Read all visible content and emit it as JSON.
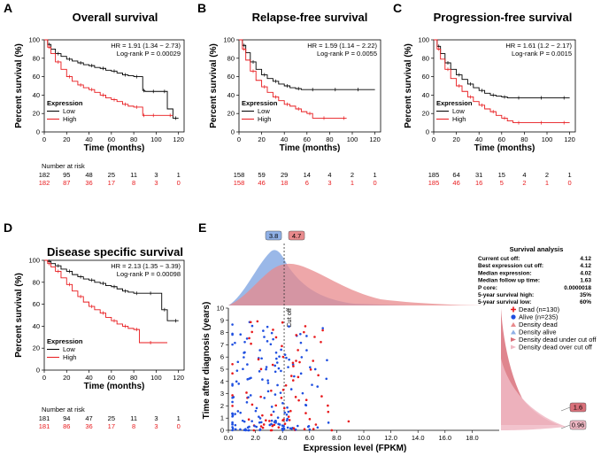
{
  "chart_data": [
    {
      "panel": "A",
      "type": "line",
      "title": "Overall survival",
      "xlabel": "Time (months)",
      "ylabel": "Percent survival (%)",
      "xticks": [
        0,
        20,
        40,
        60,
        80,
        100,
        120
      ],
      "yticks": [
        0,
        20,
        40,
        60,
        80,
        100
      ],
      "xlim": [
        0,
        125
      ],
      "ylim": [
        0,
        100
      ],
      "annotations": [
        "HR = 1.91 (1.34 − 2.73)",
        "Log-rank P = 0.00029"
      ],
      "legend_title": "Expression",
      "series": [
        {
          "name": "Low",
          "color": "#000000",
          "x": [
            0,
            3,
            6,
            10,
            15,
            20,
            25,
            30,
            35,
            40,
            45,
            50,
            55,
            60,
            65,
            70,
            75,
            80,
            85,
            88,
            90,
            95,
            100,
            105,
            110,
            115,
            120
          ],
          "y": [
            100,
            95,
            90,
            85,
            82,
            79,
            77,
            75,
            73,
            72,
            70,
            69,
            67,
            66,
            64,
            62,
            61,
            60,
            60,
            45,
            44,
            44,
            44,
            44,
            25,
            15,
            15
          ]
        },
        {
          "name": "High",
          "color": "#e8191c",
          "x": [
            0,
            3,
            6,
            10,
            15,
            20,
            25,
            30,
            35,
            40,
            45,
            50,
            55,
            60,
            65,
            70,
            75,
            80,
            85,
            88,
            90,
            95,
            100,
            110,
            115
          ],
          "y": [
            100,
            92,
            85,
            76,
            68,
            60,
            55,
            51,
            48,
            46,
            43,
            40,
            37,
            35,
            33,
            30,
            28,
            27,
            27,
            18,
            18,
            18,
            18,
            18,
            18
          ]
        }
      ],
      "risk_header": "Number at risk",
      "risk_low": [
        "182",
        "95",
        "48",
        "25",
        "11",
        "3",
        "1"
      ],
      "risk_high": [
        "182",
        "87",
        "36",
        "17",
        "8",
        "3",
        "0"
      ]
    },
    {
      "panel": "B",
      "type": "line",
      "title": "Relapse-free survival",
      "xlabel": "Time (months)",
      "ylabel": "Percent survival (%)",
      "xticks": [
        0,
        20,
        40,
        60,
        80,
        100,
        120
      ],
      "yticks": [
        0,
        20,
        40,
        60,
        80,
        100
      ],
      "xlim": [
        0,
        125
      ],
      "ylim": [
        0,
        100
      ],
      "annotations": [
        "HR = 1.59 (1.14 − 2.22)",
        "Log-rank P = 0.0055"
      ],
      "legend_title": "Expression",
      "series": [
        {
          "name": "Low",
          "color": "#000000",
          "x": [
            0,
            3,
            6,
            10,
            15,
            20,
            25,
            30,
            35,
            40,
            45,
            50,
            55,
            60,
            70,
            80,
            90,
            100,
            110,
            120
          ],
          "y": [
            100,
            94,
            86,
            76,
            68,
            62,
            58,
            55,
            52,
            50,
            48,
            47,
            46,
            46,
            46,
            46,
            46,
            46,
            46,
            46
          ]
        },
        {
          "name": "High",
          "color": "#e8191c",
          "x": [
            0,
            3,
            6,
            10,
            15,
            20,
            25,
            30,
            35,
            40,
            45,
            50,
            55,
            60,
            65,
            70,
            80,
            90,
            95
          ],
          "y": [
            100,
            90,
            78,
            66,
            56,
            49,
            43,
            38,
            34,
            30,
            28,
            25,
            22,
            20,
            15,
            15,
            15,
            15,
            15
          ]
        }
      ],
      "risk_header": "",
      "risk_low": [
        "158",
        "59",
        "29",
        "14",
        "4",
        "2",
        "1"
      ],
      "risk_high": [
        "158",
        "46",
        "18",
        "6",
        "3",
        "1",
        "0"
      ]
    },
    {
      "panel": "C",
      "type": "line",
      "title": "Progression-free survival",
      "xlabel": "Time (months)",
      "ylabel": "Percent survival (%)",
      "xticks": [
        0,
        20,
        40,
        60,
        80,
        100,
        120
      ],
      "yticks": [
        0,
        20,
        40,
        60,
        80,
        100
      ],
      "xlim": [
        0,
        125
      ],
      "ylim": [
        0,
        100
      ],
      "annotations": [
        "HR = 1.61 (1.2 − 2.17)",
        "Log-rank P = 0.0015"
      ],
      "legend_title": "Expression",
      "series": [
        {
          "name": "Low",
          "color": "#000000",
          "x": [
            0,
            3,
            6,
            10,
            15,
            20,
            25,
            30,
            35,
            40,
            45,
            50,
            55,
            60,
            65,
            70,
            80,
            90,
            100,
            110,
            120
          ],
          "y": [
            100,
            93,
            85,
            75,
            68,
            62,
            57,
            52,
            48,
            45,
            42,
            40,
            39,
            38,
            37,
            37,
            37,
            37,
            37,
            37,
            37
          ]
        },
        {
          "name": "High",
          "color": "#e8191c",
          "x": [
            0,
            3,
            6,
            10,
            15,
            20,
            25,
            30,
            35,
            40,
            45,
            50,
            55,
            60,
            65,
            70,
            80,
            90,
            100,
            110,
            120
          ],
          "y": [
            100,
            90,
            79,
            68,
            58,
            50,
            44,
            38,
            33,
            29,
            25,
            22,
            18,
            15,
            12,
            10,
            10,
            10,
            10,
            10,
            10
          ]
        }
      ],
      "risk_header": "",
      "risk_low": [
        "185",
        "64",
        "31",
        "15",
        "4",
        "2",
        "1"
      ],
      "risk_high": [
        "185",
        "46",
        "16",
        "5",
        "2",
        "1",
        "0"
      ]
    },
    {
      "panel": "D",
      "type": "line",
      "title": "Disease specific survival",
      "xlabel": "Time (months)",
      "ylabel": "Percent survival (%)",
      "xticks": [
        0,
        20,
        40,
        60,
        80,
        100,
        120
      ],
      "yticks": [
        0,
        20,
        40,
        60,
        80,
        100
      ],
      "xlim": [
        0,
        125
      ],
      "ylim": [
        0,
        100
      ],
      "annotations": [
        "HR = 2.13 (1.35 − 3.39)",
        "Log-rank P = 0.00098"
      ],
      "legend_title": "Expression",
      "series": [
        {
          "name": "Low",
          "color": "#000000",
          "x": [
            0,
            3,
            6,
            10,
            15,
            20,
            25,
            30,
            35,
            40,
            45,
            50,
            55,
            60,
            65,
            70,
            75,
            80,
            85,
            90,
            100,
            105,
            110,
            115,
            120
          ],
          "y": [
            100,
            99,
            97,
            95,
            92,
            90,
            87,
            85,
            83,
            82,
            80,
            79,
            77,
            76,
            74,
            72,
            71,
            70,
            70,
            70,
            70,
            55,
            45,
            45,
            45
          ]
        },
        {
          "name": "High",
          "color": "#e8191c",
          "x": [
            0,
            3,
            6,
            10,
            15,
            20,
            25,
            30,
            35,
            40,
            45,
            50,
            55,
            60,
            65,
            70,
            75,
            80,
            85,
            90,
            100,
            110
          ],
          "y": [
            100,
            97,
            94,
            90,
            84,
            78,
            72,
            67,
            62,
            58,
            55,
            52,
            48,
            45,
            42,
            40,
            38,
            37,
            25,
            25,
            25,
            25
          ]
        }
      ],
      "risk_header": "Number at risk",
      "risk_low": [
        "181",
        "94",
        "47",
        "25",
        "11",
        "3",
        "1"
      ],
      "risk_high": [
        "181",
        "86",
        "36",
        "17",
        "8",
        "3",
        "0"
      ]
    },
    {
      "panel": "E",
      "type": "scatter",
      "xlabel": "Expression level (FPKM)",
      "ylabel": "Time after diagnosis (years)",
      "xticks": [
        0,
        "0.0",
        "2.0",
        "4.0",
        "6.0",
        "8.0",
        "10.0",
        "12.0",
        "14.0",
        "16.0",
        "18.0"
      ],
      "yticks": [
        0,
        1,
        2,
        3,
        4,
        5,
        6,
        7,
        8,
        9,
        10
      ],
      "xlim": [
        0,
        20
      ],
      "ylim": [
        0,
        10
      ],
      "cutoff": 4.12,
      "cutoff_label": "Cut off",
      "top_markers": [
        "3.8",
        "4.7"
      ],
      "right_markers": [
        "1.6",
        "0.96"
      ],
      "legend": [
        {
          "label": "Dead (n=130)",
          "color": "#e8191c"
        },
        {
          "label": "Alive (n=235)",
          "color": "#1f4fe0"
        },
        {
          "label": "Density dead",
          "color": "#e88a8c"
        },
        {
          "label": "Density alive",
          "color": "#8fb0e6"
        },
        {
          "label": "Density dead under cut off",
          "color": "#d9707a"
        },
        {
          "label": "Density dead over cut off",
          "color": "#f0b8c4"
        }
      ],
      "survival_analysis": {
        "title": "Survival analysis",
        "rows": [
          {
            "label": "Current cut off:",
            "value": "4.12"
          },
          {
            "label": "Best expression cut off:",
            "value": "4.12"
          },
          {
            "label": "Median expression:",
            "value": "4.02"
          },
          {
            "label": "Median follow up time:",
            "value": "1.63"
          },
          {
            "label": "P core:",
            "value": "0.0000018"
          },
          {
            "label": "5-year survival high:",
            "value": "35%"
          },
          {
            "label": "5-year survival low:",
            "value": "60%"
          }
        ]
      }
    }
  ]
}
